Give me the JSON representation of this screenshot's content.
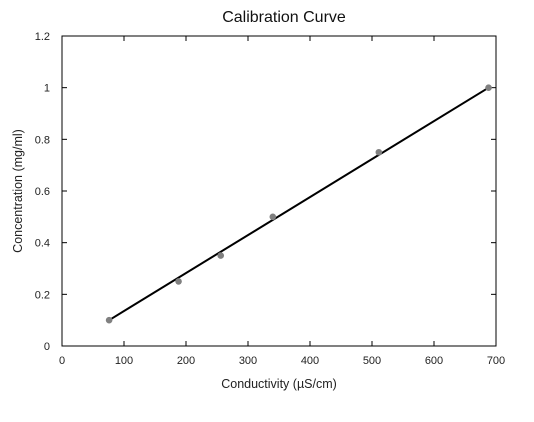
{
  "chart_data": {
    "type": "scatter",
    "title": "Calibration Curve",
    "xlabel": "Conductivity (µS/cm)",
    "ylabel": "Concentration (mg/ml)",
    "xlim": [
      0,
      700
    ],
    "ylim": [
      0,
      1.2
    ],
    "xticks": [
      "0",
      "100",
      "200",
      "300",
      "400",
      "500",
      "600",
      "700"
    ],
    "yticks": [
      "0",
      "0.2",
      "0.4",
      "0.6",
      "0.8",
      "1",
      "1.2"
    ],
    "grid": false,
    "legend": "none",
    "series": [
      {
        "points": [
          {
            "x": 76,
            "y": 0.1
          },
          {
            "x": 188,
            "y": 0.25
          },
          {
            "x": 256,
            "y": 0.35
          },
          {
            "x": 340,
            "y": 0.5
          },
          {
            "x": 511,
            "y": 0.75
          },
          {
            "x": 688,
            "y": 1.0
          }
        ],
        "marker_color": "#808080"
      }
    ],
    "trendline": {
      "x": [
        76,
        688
      ],
      "y": [
        0.1,
        1.0
      ],
      "color": "#000000"
    }
  }
}
